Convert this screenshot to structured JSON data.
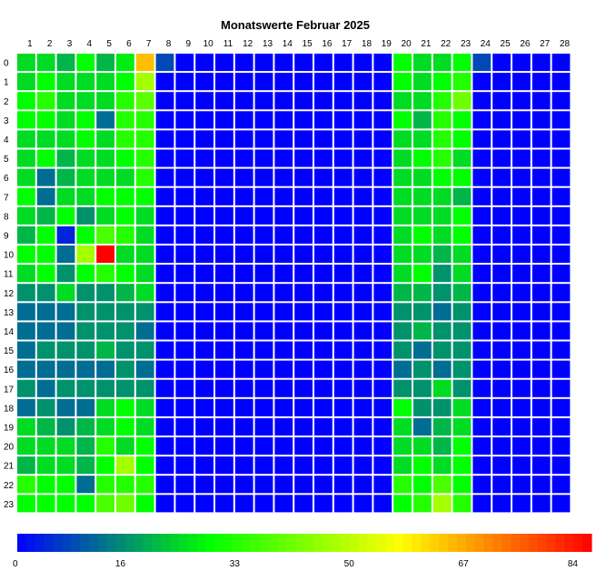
{
  "chart_data": {
    "type": "heatmap",
    "title": "Monatswerte Februar 2025",
    "xlabel": "",
    "ylabel": "",
    "x_categories": [
      "1",
      "2",
      "3",
      "4",
      "5",
      "6",
      "7",
      "8",
      "9",
      "10",
      "11",
      "12",
      "13",
      "14",
      "15",
      "16",
      "17",
      "18",
      "19",
      "20",
      "21",
      "22",
      "23",
      "24",
      "25",
      "26",
      "27",
      "28"
    ],
    "y_categories": [
      "0",
      "1",
      "2",
      "3",
      "4",
      "5",
      "6",
      "7",
      "8",
      "9",
      "10",
      "11",
      "12",
      "13",
      "14",
      "15",
      "16",
      "17",
      "18",
      "19",
      "20",
      "21",
      "22",
      "23"
    ],
    "value_range": [
      0,
      84
    ],
    "colorbar_ticks": [
      0,
      16,
      33,
      50,
      67,
      84
    ],
    "colormap": [
      "#0000ff",
      "#00ff00",
      "#ffff00",
      "#ff0000"
    ],
    "values": [
      [
        24,
        24,
        20,
        28,
        20,
        26,
        63,
        8,
        0,
        0,
        0,
        0,
        0,
        0,
        0,
        0,
        0,
        0,
        0,
        28,
        24,
        24,
        28,
        8,
        0,
        0,
        0,
        0
      ],
      [
        24,
        28,
        24,
        24,
        24,
        28,
        46,
        0,
        0,
        0,
        0,
        0,
        0,
        0,
        0,
        0,
        0,
        0,
        0,
        28,
        24,
        28,
        32,
        0,
        0,
        0,
        0,
        0
      ],
      [
        28,
        32,
        24,
        24,
        24,
        32,
        38,
        0,
        0,
        0,
        0,
        0,
        0,
        0,
        0,
        0,
        0,
        0,
        0,
        24,
        24,
        32,
        40,
        0,
        0,
        0,
        0,
        0
      ],
      [
        28,
        28,
        24,
        28,
        12,
        32,
        32,
        0,
        0,
        0,
        0,
        0,
        0,
        0,
        0,
        0,
        0,
        0,
        0,
        28,
        20,
        32,
        28,
        0,
        0,
        0,
        0,
        0
      ],
      [
        24,
        24,
        24,
        28,
        24,
        32,
        32,
        0,
        0,
        0,
        0,
        0,
        0,
        0,
        0,
        0,
        0,
        0,
        0,
        24,
        24,
        32,
        28,
        0,
        0,
        0,
        0,
        0
      ],
      [
        24,
        28,
        20,
        24,
        24,
        28,
        32,
        0,
        0,
        0,
        0,
        0,
        0,
        0,
        0,
        0,
        0,
        0,
        0,
        24,
        28,
        32,
        24,
        0,
        0,
        0,
        0,
        0
      ],
      [
        24,
        12,
        20,
        24,
        24,
        24,
        32,
        0,
        0,
        0,
        0,
        0,
        0,
        0,
        0,
        0,
        0,
        0,
        0,
        24,
        24,
        28,
        28,
        0,
        0,
        0,
        0,
        0
      ],
      [
        28,
        12,
        24,
        24,
        28,
        28,
        28,
        0,
        0,
        0,
        0,
        0,
        0,
        0,
        0,
        0,
        0,
        0,
        0,
        24,
        24,
        24,
        20,
        0,
        0,
        0,
        0,
        0
      ],
      [
        24,
        20,
        28,
        16,
        24,
        28,
        24,
        0,
        0,
        0,
        0,
        0,
        0,
        0,
        0,
        0,
        0,
        0,
        0,
        24,
        24,
        24,
        28,
        0,
        0,
        0,
        0,
        0
      ],
      [
        20,
        28,
        4,
        28,
        36,
        32,
        24,
        0,
        0,
        0,
        0,
        0,
        0,
        0,
        0,
        0,
        0,
        0,
        0,
        24,
        28,
        24,
        28,
        0,
        0,
        0,
        0,
        0
      ],
      [
        28,
        28,
        12,
        46,
        84,
        24,
        24,
        0,
        0,
        0,
        0,
        0,
        0,
        0,
        0,
        0,
        0,
        0,
        0,
        24,
        24,
        20,
        24,
        0,
        0,
        0,
        0,
        0
      ],
      [
        24,
        28,
        16,
        28,
        32,
        28,
        24,
        0,
        0,
        0,
        0,
        0,
        0,
        0,
        0,
        0,
        0,
        0,
        0,
        24,
        28,
        16,
        24,
        0,
        0,
        0,
        0,
        0
      ],
      [
        16,
        16,
        24,
        16,
        16,
        20,
        24,
        0,
        0,
        0,
        0,
        0,
        0,
        0,
        0,
        0,
        0,
        0,
        0,
        20,
        20,
        16,
        20,
        0,
        0,
        0,
        0,
        0
      ],
      [
        12,
        12,
        12,
        16,
        16,
        16,
        16,
        0,
        0,
        0,
        0,
        0,
        0,
        0,
        0,
        0,
        0,
        0,
        0,
        16,
        16,
        12,
        16,
        0,
        0,
        0,
        0,
        0
      ],
      [
        12,
        12,
        12,
        16,
        16,
        16,
        12,
        0,
        0,
        0,
        0,
        0,
        0,
        0,
        0,
        0,
        0,
        0,
        0,
        16,
        20,
        16,
        16,
        0,
        0,
        0,
        0,
        0
      ],
      [
        12,
        16,
        16,
        16,
        20,
        16,
        16,
        0,
        0,
        0,
        0,
        0,
        0,
        0,
        0,
        0,
        0,
        0,
        0,
        16,
        12,
        16,
        16,
        0,
        0,
        0,
        0,
        0
      ],
      [
        12,
        12,
        12,
        12,
        12,
        16,
        12,
        0,
        0,
        0,
        0,
        0,
        0,
        0,
        0,
        0,
        0,
        0,
        0,
        12,
        16,
        12,
        16,
        0,
        0,
        0,
        0,
        0
      ],
      [
        16,
        12,
        16,
        16,
        16,
        16,
        16,
        0,
        0,
        0,
        0,
        0,
        0,
        0,
        0,
        0,
        0,
        0,
        0,
        16,
        16,
        24,
        16,
        0,
        0,
        0,
        0,
        0
      ],
      [
        12,
        16,
        12,
        12,
        24,
        28,
        24,
        0,
        0,
        0,
        0,
        0,
        0,
        0,
        0,
        0,
        0,
        0,
        0,
        28,
        16,
        16,
        24,
        0,
        0,
        0,
        0,
        0
      ],
      [
        24,
        20,
        16,
        20,
        24,
        28,
        24,
        0,
        0,
        0,
        0,
        0,
        0,
        0,
        0,
        0,
        0,
        0,
        0,
        24,
        12,
        20,
        24,
        0,
        0,
        0,
        0,
        0
      ],
      [
        24,
        24,
        24,
        20,
        32,
        24,
        28,
        0,
        0,
        0,
        0,
        0,
        0,
        0,
        0,
        0,
        0,
        0,
        0,
        24,
        24,
        20,
        28,
        0,
        0,
        0,
        0,
        0
      ],
      [
        20,
        24,
        24,
        20,
        28,
        46,
        28,
        0,
        0,
        0,
        0,
        0,
        0,
        0,
        0,
        0,
        0,
        0,
        0,
        24,
        28,
        24,
        28,
        0,
        0,
        0,
        0,
        0
      ],
      [
        32,
        28,
        28,
        12,
        32,
        32,
        32,
        0,
        0,
        0,
        0,
        0,
        0,
        0,
        0,
        0,
        0,
        0,
        0,
        32,
        28,
        36,
        28,
        0,
        0,
        0,
        0,
        0
      ],
      [
        28,
        28,
        28,
        28,
        36,
        40,
        28,
        0,
        0,
        0,
        0,
        0,
        0,
        0,
        0,
        0,
        0,
        0,
        0,
        28,
        32,
        46,
        32,
        0,
        0,
        0,
        0,
        0
      ]
    ]
  }
}
